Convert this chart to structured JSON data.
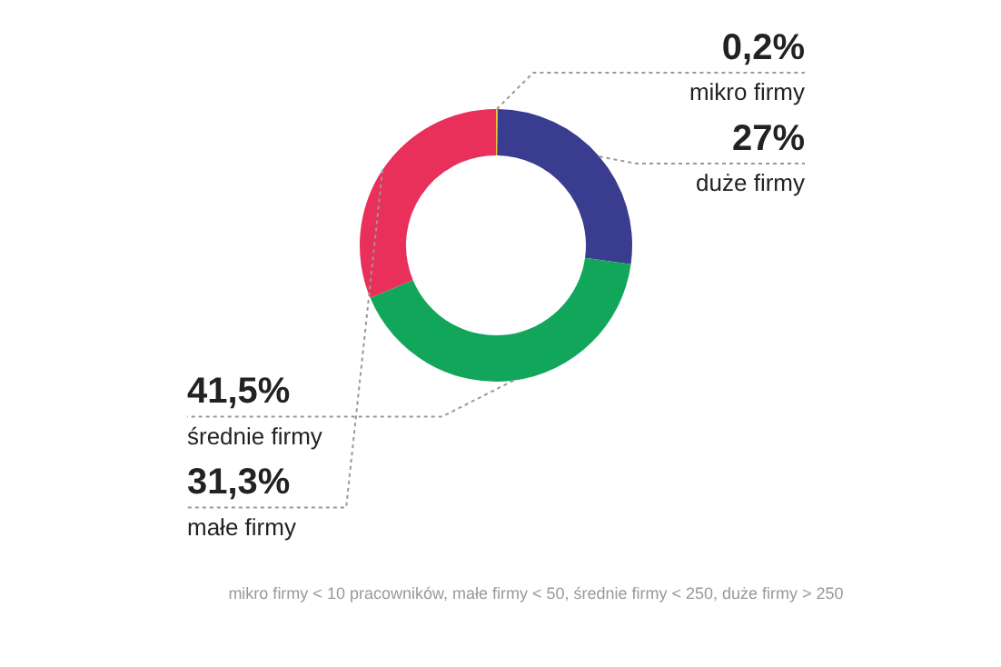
{
  "chart_data": {
    "type": "donut",
    "categories": [
      "mikro firmy",
      "duże firmy",
      "średnie firmy",
      "małe firmy"
    ],
    "values": [
      0.2,
      27,
      41.5,
      31.3
    ],
    "value_labels": [
      "0,2%",
      "27%",
      "41,5%",
      "31,3%"
    ],
    "colors": [
      "#f2c230",
      "#3a3d8f",
      "#12a65b",
      "#e8305a"
    ],
    "legend": false,
    "annotations": [
      "mikro firmy < 10 pracowników, małe firmy < 50, średnie firmy < 250, duże firmy > 250"
    ]
  }
}
